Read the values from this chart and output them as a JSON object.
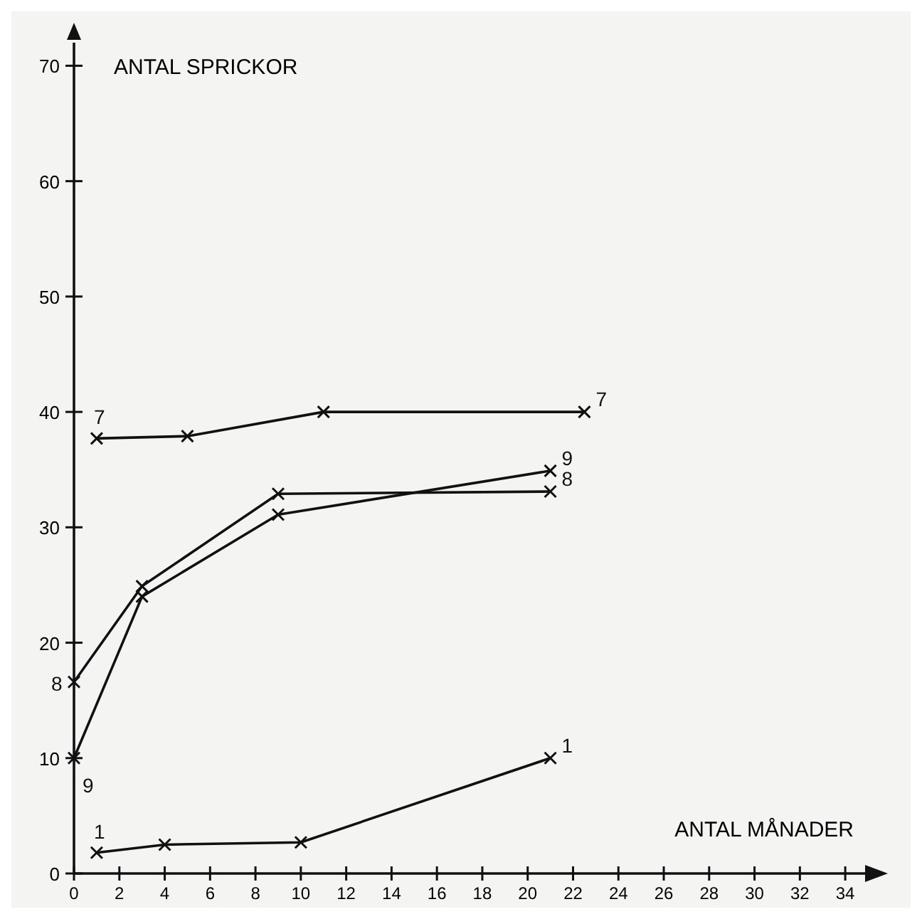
{
  "chart_data": {
    "type": "line",
    "xlabel": "ANTAL MÅNADER",
    "ylabel": "ANTAL SPRICKOR",
    "xlim": [
      0,
      35
    ],
    "ylim": [
      0,
      72
    ],
    "xticks": [
      0,
      2,
      4,
      6,
      8,
      10,
      12,
      14,
      16,
      18,
      20,
      22,
      24,
      26,
      28,
      30,
      32,
      34
    ],
    "yticks": [
      0,
      10,
      20,
      30,
      40,
      50,
      60,
      70
    ],
    "marker": "cross",
    "line_style": "solid",
    "grid": false,
    "series": [
      {
        "name": "7",
        "color": "#111111",
        "x": [
          1,
          5,
          11,
          22.5
        ],
        "values": [
          37.7,
          37.9,
          40,
          40
        ]
      },
      {
        "name": "8",
        "color": "#111111",
        "x": [
          0,
          3,
          9,
          21
        ],
        "values": [
          16.6,
          24.9,
          32.9,
          33.1
        ]
      },
      {
        "name": "9",
        "color": "#111111",
        "x": [
          0,
          3,
          9,
          21
        ],
        "values": [
          10,
          24,
          31.1,
          34.9
        ]
      },
      {
        "name": "1",
        "color": "#111111",
        "x": [
          1,
          4,
          10,
          21
        ],
        "values": [
          1.8,
          2.5,
          2.7,
          10
        ]
      }
    ]
  }
}
